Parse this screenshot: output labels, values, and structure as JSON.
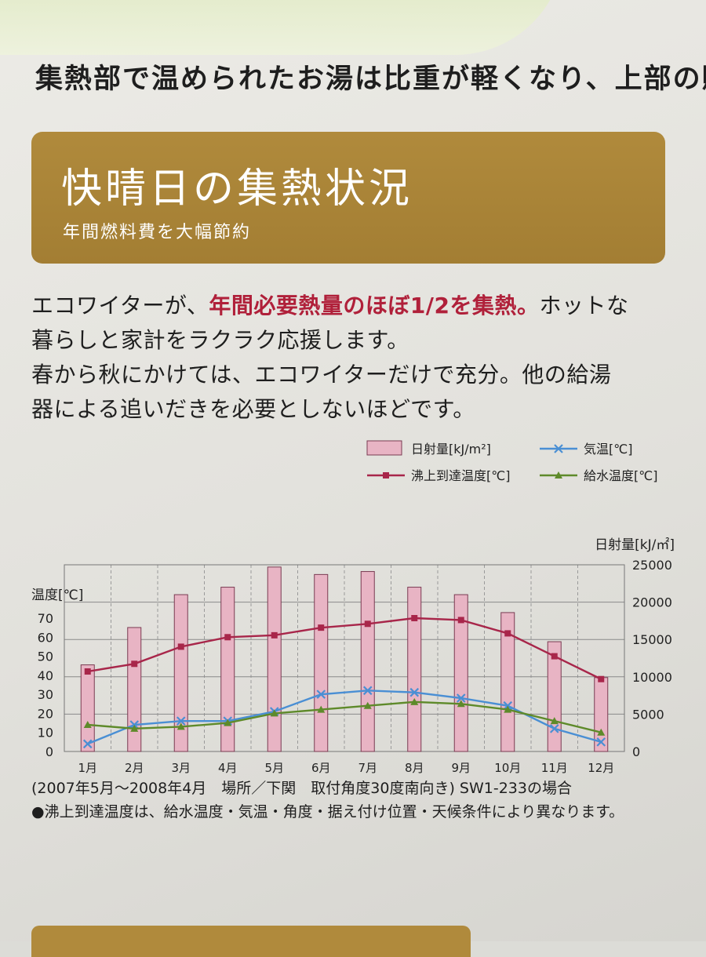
{
  "intro": {
    "line": "集熱部で温められたお湯は比重が軽くなり、上部の貯"
  },
  "banner": {
    "title": "快晴日の集熱状況",
    "subtitle": "年間燃料費を大幅節約"
  },
  "body": {
    "p1_a": "エコワイターが、",
    "p1_highlight": "年間必要熱量のほぼ1/2を集熱。",
    "p1_b": "ホットな",
    "p1_c": "暮らしと家計をラクラク応援します。",
    "p2_a": "春から秋にかけては、エコワイターだけで充分。他の給湯",
    "p2_b": "器による追いだきを必要としないほどです。"
  },
  "chart_data": {
    "type": "bar",
    "categories": [
      "1月",
      "2月",
      "3月",
      "4月",
      "5月",
      "6月",
      "7月",
      "8月",
      "9月",
      "10月",
      "11月",
      "12月"
    ],
    "series": [
      {
        "name": "日射量[kJ/m²]",
        "type": "bar",
        "axis": "right",
        "color": "#e8b4c4",
        "values": [
          11600,
          16600,
          21000,
          22000,
          24700,
          23700,
          24100,
          22000,
          21000,
          18600,
          14700,
          9900
        ]
      },
      {
        "name": "気温[℃]",
        "type": "line",
        "axis": "left",
        "color": "#4a8fd4",
        "marker": "x",
        "values": [
          4,
          14,
          16,
          16,
          21,
          30,
          32,
          31,
          28,
          24,
          12,
          5
        ]
      },
      {
        "name": "沸上到達温度[℃]",
        "type": "line",
        "axis": "left",
        "color": "#a8264a",
        "marker": "square",
        "values": [
          42,
          46,
          55,
          60,
          61,
          65,
          67,
          70,
          69,
          62,
          50,
          38
        ]
      },
      {
        "name": "給水温度[℃]",
        "type": "line",
        "axis": "left",
        "color": "#5e8a2a",
        "marker": "triangle",
        "values": [
          14,
          12,
          13,
          15,
          20,
          22,
          24,
          26,
          25,
          22,
          16,
          10
        ]
      }
    ],
    "left_axis": {
      "label": "温度[℃]",
      "ylim": [
        0,
        70
      ],
      "ticks": [
        0,
        10,
        20,
        30,
        40,
        50,
        60,
        70
      ]
    },
    "right_axis": {
      "label": "日射量[kJ/㎡]",
      "ylim": [
        0,
        25000
      ],
      "ticks": [
        0,
        5000,
        10000,
        15000,
        20000,
        25000
      ]
    },
    "legend": [
      {
        "label": "日射量[kJ/m²]",
        "marker": "bar",
        "color": "#e8b4c4"
      },
      {
        "label": "気温[℃]",
        "marker": "x",
        "color": "#4a8fd4"
      },
      {
        "label": "沸上到達温度[℃]",
        "marker": "square",
        "color": "#a8264a"
      },
      {
        "label": "給水温度[℃]",
        "marker": "triangle",
        "color": "#5e8a2a"
      }
    ],
    "legend_position": "top-right",
    "grid": true
  },
  "notes": {
    "note1": "(2007年5月～2008年4月　場所／下関　取付角度30度南向き) SW1-233の場合",
    "note2": "●沸上到達温度は、給水温度・気温・角度・据え付け位置・天候条件により異なります。"
  }
}
